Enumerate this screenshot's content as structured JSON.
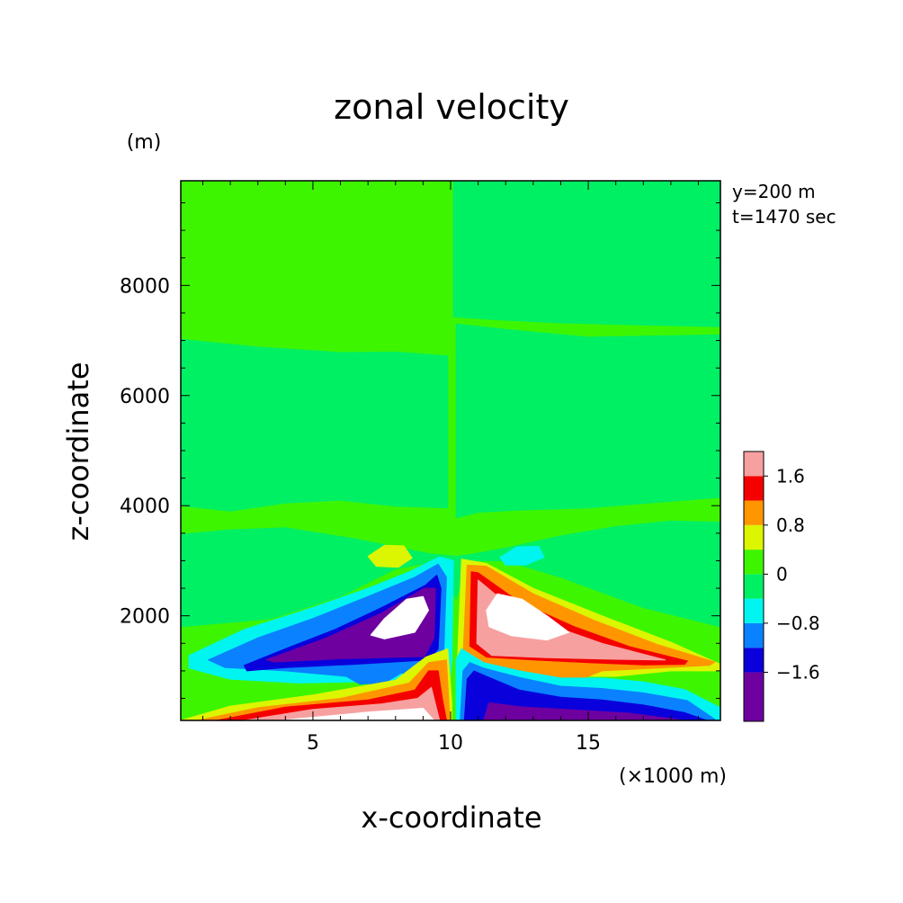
{
  "chart_data": {
    "type": "heatmap",
    "title": "zonal velocity",
    "xlabel": "x-coordinate",
    "ylabel": "z-coordinate",
    "x_unit": "(×1000 m)",
    "y_unit": "(m)",
    "annotations": [
      "y=200 m",
      "t=1470 sec"
    ],
    "xlim": [
      0.2,
      19.8
    ],
    "ylim": [
      100,
      9900
    ],
    "x_ticks": [
      {
        "value": 5,
        "label": "5"
      },
      {
        "value": 10,
        "label": "10"
      },
      {
        "value": 15,
        "label": "15"
      }
    ],
    "y_ticks": [
      {
        "value": 2000,
        "label": "2000"
      },
      {
        "value": 4000,
        "label": "4000"
      },
      {
        "value": 6000,
        "label": "6000"
      },
      {
        "value": 8000,
        "label": "8000"
      }
    ],
    "colorbar": {
      "levels": [
        {
          "from": -2.4,
          "to": -1.6,
          "color": "#6e00a0"
        },
        {
          "from": -1.6,
          "to": -1.2,
          "color": "#0a00dc"
        },
        {
          "from": -1.2,
          "to": -0.8,
          "color": "#0a82ff"
        },
        {
          "from": -0.8,
          "to": -0.4,
          "color": "#00f5f0"
        },
        {
          "from": -0.4,
          "to": 0.0,
          "color": "#00f064"
        },
        {
          "from": 0.0,
          "to": 0.4,
          "color": "#3ef500"
        },
        {
          "from": 0.4,
          "to": 0.8,
          "color": "#dcf500"
        },
        {
          "from": 0.8,
          "to": 1.2,
          "color": "#ff9600"
        },
        {
          "from": 1.2,
          "to": 1.6,
          "color": "#f50000"
        },
        {
          "from": 1.6,
          "to": 2.0,
          "color": "#f7a0a0"
        }
      ],
      "tick_labels": [
        {
          "value": 1.6,
          "label": "1.6"
        },
        {
          "value": 0.8,
          "label": "0.8"
        },
        {
          "value": 0.0,
          "label": "0"
        },
        {
          "value": -0.8,
          "label": "−0.8"
        },
        {
          "value": -1.6,
          "label": "−1.6"
        }
      ]
    },
    "background_level_color": "#3ef500",
    "regions": [
      {
        "name": "right-upper-band",
        "color": "#00f064",
        "points": [
          [
            10.1,
            9900
          ],
          [
            19.8,
            9900
          ],
          [
            19.8,
            7250
          ],
          [
            17,
            7280
          ],
          [
            14,
            7320
          ],
          [
            11.5,
            7380
          ],
          [
            10.1,
            7430
          ]
        ]
      },
      {
        "name": "right-mid-band",
        "color": "#00f064",
        "points": [
          [
            10.2,
            7300
          ],
          [
            12,
            7200
          ],
          [
            15,
            7060
          ],
          [
            17,
            7080
          ],
          [
            19.8,
            7100
          ],
          [
            19.8,
            4150
          ],
          [
            17,
            4040
          ],
          [
            15,
            3960
          ],
          [
            12.5,
            3920
          ],
          [
            11,
            3880
          ],
          [
            10.2,
            3780
          ]
        ]
      },
      {
        "name": "left-mid-band",
        "color": "#00f064",
        "points": [
          [
            0.2,
            7020
          ],
          [
            3,
            6880
          ],
          [
            6,
            6780
          ],
          [
            8,
            6790
          ],
          [
            9.9,
            6720
          ],
          [
            9.9,
            3960
          ],
          [
            8,
            3990
          ],
          [
            6,
            4100
          ],
          [
            4,
            4050
          ],
          [
            2,
            3900
          ],
          [
            0.2,
            4000
          ]
        ]
      },
      {
        "name": "lower-band",
        "color": "#00f064",
        "points": [
          [
            0.2,
            3480
          ],
          [
            2,
            3560
          ],
          [
            4,
            3600
          ],
          [
            6.5,
            3400
          ],
          [
            8,
            3250
          ],
          [
            9.2,
            3130
          ],
          [
            10.2,
            3080
          ],
          [
            10.8,
            3120
          ],
          [
            12,
            3230
          ],
          [
            14,
            3450
          ],
          [
            16,
            3620
          ],
          [
            18,
            3720
          ],
          [
            19.8,
            3700
          ],
          [
            19.8,
            1800
          ],
          [
            17,
            2150
          ],
          [
            14,
            2700
          ],
          [
            12,
            3000
          ],
          [
            10.6,
            3000
          ],
          [
            10.2,
            2300
          ],
          [
            9.6,
            3000
          ],
          [
            8,
            2850
          ],
          [
            6,
            2350
          ],
          [
            3.5,
            1950
          ],
          [
            0.2,
            1800
          ]
        ]
      },
      {
        "name": "left-yellow-blob",
        "color": "#dcf500",
        "points": [
          [
            7,
            3080
          ],
          [
            7.6,
            3280
          ],
          [
            8.3,
            3270
          ],
          [
            8.6,
            3050
          ],
          [
            8.1,
            2880
          ],
          [
            7.3,
            2900
          ]
        ]
      },
      {
        "name": "right-cyan-blob",
        "color": "#00f5f0",
        "points": [
          [
            11.8,
            3060
          ],
          [
            12.4,
            3250
          ],
          [
            13.2,
            3260
          ],
          [
            13.4,
            3060
          ],
          [
            12.7,
            2920
          ],
          [
            12.0,
            2920
          ]
        ]
      },
      {
        "name": "left-neg-cyan",
        "color": "#00f5f0",
        "points": [
          [
            0.5,
            1280
          ],
          [
            2.5,
            1750
          ],
          [
            5,
            2150
          ],
          [
            7,
            2500
          ],
          [
            8.5,
            2800
          ],
          [
            9.6,
            3070
          ],
          [
            10.1,
            3000
          ],
          [
            10.05,
            1200
          ],
          [
            9.9,
            500
          ],
          [
            9.6,
            350
          ],
          [
            9,
            700
          ],
          [
            8,
            820
          ],
          [
            6.5,
            800
          ],
          [
            4.5,
            780
          ],
          [
            2,
            850
          ],
          [
            0.5,
            1050
          ]
        ]
      },
      {
        "name": "left-neg-lightblue",
        "color": "#0a82ff",
        "points": [
          [
            1.2,
            1200
          ],
          [
            3,
            1600
          ],
          [
            5,
            1950
          ],
          [
            7,
            2350
          ],
          [
            8.7,
            2700
          ],
          [
            9.55,
            2940
          ],
          [
            9.85,
            2700
          ],
          [
            9.75,
            1250
          ],
          [
            9.3,
            900
          ],
          [
            8.2,
            960
          ],
          [
            7.6,
            780
          ],
          [
            6.7,
            760
          ],
          [
            6.2,
            900
          ],
          [
            4,
            1000
          ],
          [
            1.8,
            1060
          ]
        ]
      },
      {
        "name": "left-neg-blue",
        "color": "#0a00dc",
        "points": [
          [
            2.5,
            1100
          ],
          [
            4,
            1400
          ],
          [
            5.8,
            1750
          ],
          [
            7.5,
            2150
          ],
          [
            9.1,
            2560
          ],
          [
            9.5,
            2740
          ],
          [
            9.65,
            2500
          ],
          [
            9.55,
            1400
          ],
          [
            9.2,
            1200
          ],
          [
            6.5,
            1120
          ],
          [
            4,
            1060
          ],
          [
            2.6,
            1000
          ]
        ]
      },
      {
        "name": "left-neg-purple",
        "color": "#6e00a0",
        "points": [
          [
            3.3,
            1200
          ],
          [
            5.5,
            1600
          ],
          [
            7.5,
            2050
          ],
          [
            9.05,
            2500
          ],
          [
            9.45,
            2500
          ],
          [
            9.4,
            1600
          ],
          [
            9.05,
            1260
          ],
          [
            6,
            1220
          ],
          [
            3.6,
            1160
          ]
        ]
      },
      {
        "name": "left-neg-core",
        "color": "#ffffff",
        "points": [
          [
            7.1,
            1650
          ],
          [
            7.6,
            1950
          ],
          [
            8.4,
            2300
          ],
          [
            9.0,
            2350
          ],
          [
            9.2,
            2100
          ],
          [
            8.7,
            1700
          ],
          [
            7.6,
            1580
          ]
        ]
      },
      {
        "name": "left-pos-yellow",
        "color": "#dcf500",
        "points": [
          [
            0.2,
            100
          ],
          [
            2,
            360
          ],
          [
            5,
            560
          ],
          [
            8,
            830
          ],
          [
            9.1,
            1250
          ],
          [
            9.9,
            1400
          ],
          [
            10.05,
            400
          ],
          [
            10.05,
            100
          ]
        ]
      },
      {
        "name": "left-pos-orange",
        "color": "#ff9600",
        "points": [
          [
            0.8,
            100
          ],
          [
            3,
            330
          ],
          [
            6,
            500
          ],
          [
            8.5,
            780
          ],
          [
            9.2,
            1150
          ],
          [
            9.85,
            1200
          ],
          [
            9.95,
            300
          ],
          [
            9.95,
            100
          ]
        ]
      },
      {
        "name": "left-pos-red",
        "color": "#f50000",
        "points": [
          [
            1.5,
            100
          ],
          [
            4,
            340
          ],
          [
            7,
            470
          ],
          [
            8.7,
            650
          ],
          [
            9.2,
            1000
          ],
          [
            9.55,
            1000
          ],
          [
            9.7,
            500
          ],
          [
            9.85,
            100
          ]
        ]
      },
      {
        "name": "left-pos-pink",
        "color": "#f7a0a0",
        "points": [
          [
            2.5,
            100
          ],
          [
            5,
            300
          ],
          [
            7.5,
            400
          ],
          [
            8.8,
            500
          ],
          [
            9.3,
            700
          ],
          [
            9.5,
            300
          ],
          [
            9.6,
            100
          ]
        ]
      },
      {
        "name": "left-pos-core",
        "color": "#ffffff",
        "points": [
          [
            3.8,
            100
          ],
          [
            7,
            250
          ],
          [
            9,
            320
          ],
          [
            9.4,
            100
          ]
        ]
      },
      {
        "name": "right-pos-yellow",
        "color": "#dcf500",
        "points": [
          [
            19.8,
            1120
          ],
          [
            18,
            1520
          ],
          [
            15.5,
            2000
          ],
          [
            13,
            2500
          ],
          [
            11.3,
            2950
          ],
          [
            10.4,
            3030
          ],
          [
            10.25,
            1200
          ],
          [
            10.3,
            500
          ],
          [
            11,
            820
          ],
          [
            12.5,
            850
          ],
          [
            14,
            900
          ],
          [
            16,
            900
          ],
          [
            18,
            1000
          ],
          [
            19.8,
            1000
          ]
        ]
      },
      {
        "name": "right-pos-orange",
        "color": "#ff9600",
        "points": [
          [
            19.6,
            1160
          ],
          [
            17.5,
            1480
          ],
          [
            15.2,
            1920
          ],
          [
            13,
            2400
          ],
          [
            11.3,
            2900
          ],
          [
            10.6,
            2920
          ],
          [
            10.45,
            1250
          ],
          [
            11,
            1180
          ],
          [
            12.3,
            1000
          ],
          [
            13.2,
            780
          ],
          [
            14.3,
            760
          ],
          [
            15.5,
            1000
          ],
          [
            17.5,
            1050
          ],
          [
            19.4,
            1100
          ]
        ]
      },
      {
        "name": "right-pos-red",
        "color": "#f50000",
        "points": [
          [
            18.6,
            1180
          ],
          [
            16.5,
            1440
          ],
          [
            14.5,
            1800
          ],
          [
            12.5,
            2250
          ],
          [
            11.0,
            2780
          ],
          [
            10.75,
            2800
          ],
          [
            10.7,
            1450
          ],
          [
            11.3,
            1250
          ],
          [
            13,
            1200
          ],
          [
            15,
            1150
          ],
          [
            17,
            1110
          ],
          [
            18.5,
            1120
          ]
        ]
      },
      {
        "name": "right-pos-pink",
        "color": "#f7a0a0",
        "points": [
          [
            17.8,
            1200
          ],
          [
            15.5,
            1500
          ],
          [
            13.5,
            1850
          ],
          [
            11.6,
            2400
          ],
          [
            11.0,
            2650
          ],
          [
            10.95,
            1500
          ],
          [
            11.5,
            1280
          ],
          [
            13.5,
            1240
          ],
          [
            16,
            1210
          ],
          [
            17.5,
            1200
          ]
        ]
      },
      {
        "name": "right-pos-core",
        "color": "#ffffff",
        "points": [
          [
            11.3,
            2100
          ],
          [
            11.7,
            2400
          ],
          [
            12.6,
            2300
          ],
          [
            13.5,
            2000
          ],
          [
            14.3,
            1700
          ],
          [
            13.5,
            1560
          ],
          [
            12.2,
            1640
          ],
          [
            11.4,
            1800
          ]
        ]
      },
      {
        "name": "right-neg-cyan",
        "color": "#00f5f0",
        "points": [
          [
            10.2,
            100
          ],
          [
            10.2,
            1200
          ],
          [
            10.4,
            1400
          ],
          [
            11.2,
            1150
          ],
          [
            12.5,
            1000
          ],
          [
            14,
            870
          ],
          [
            15.5,
            870
          ],
          [
            17,
            800
          ],
          [
            18.5,
            660
          ],
          [
            19.8,
            330
          ],
          [
            19.8,
            100
          ]
        ]
      },
      {
        "name": "right-neg-lightblue",
        "color": "#0a82ff",
        "points": [
          [
            10.35,
            100
          ],
          [
            10.45,
            1000
          ],
          [
            10.7,
            1150
          ],
          [
            11.2,
            1050
          ],
          [
            12.5,
            880
          ],
          [
            14,
            720
          ],
          [
            15.5,
            680
          ],
          [
            17,
            600
          ],
          [
            18.6,
            460
          ],
          [
            19.6,
            120
          ],
          [
            19.6,
            100
          ]
        ]
      },
      {
        "name": "right-neg-blue",
        "color": "#0a00dc",
        "points": [
          [
            10.5,
            100
          ],
          [
            10.6,
            850
          ],
          [
            10.85,
            1000
          ],
          [
            11.3,
            900
          ],
          [
            12.5,
            650
          ],
          [
            14,
            520
          ],
          [
            15.5,
            470
          ],
          [
            17,
            380
          ],
          [
            18.5,
            240
          ],
          [
            19.3,
            100
          ]
        ]
      },
      {
        "name": "right-neg-purple",
        "color": "#6e00a0",
        "points": [
          [
            11.2,
            100
          ],
          [
            11.4,
            420
          ],
          [
            12.5,
            350
          ],
          [
            14.5,
            290
          ],
          [
            16.5,
            230
          ],
          [
            18.5,
            100
          ]
        ]
      }
    ]
  }
}
